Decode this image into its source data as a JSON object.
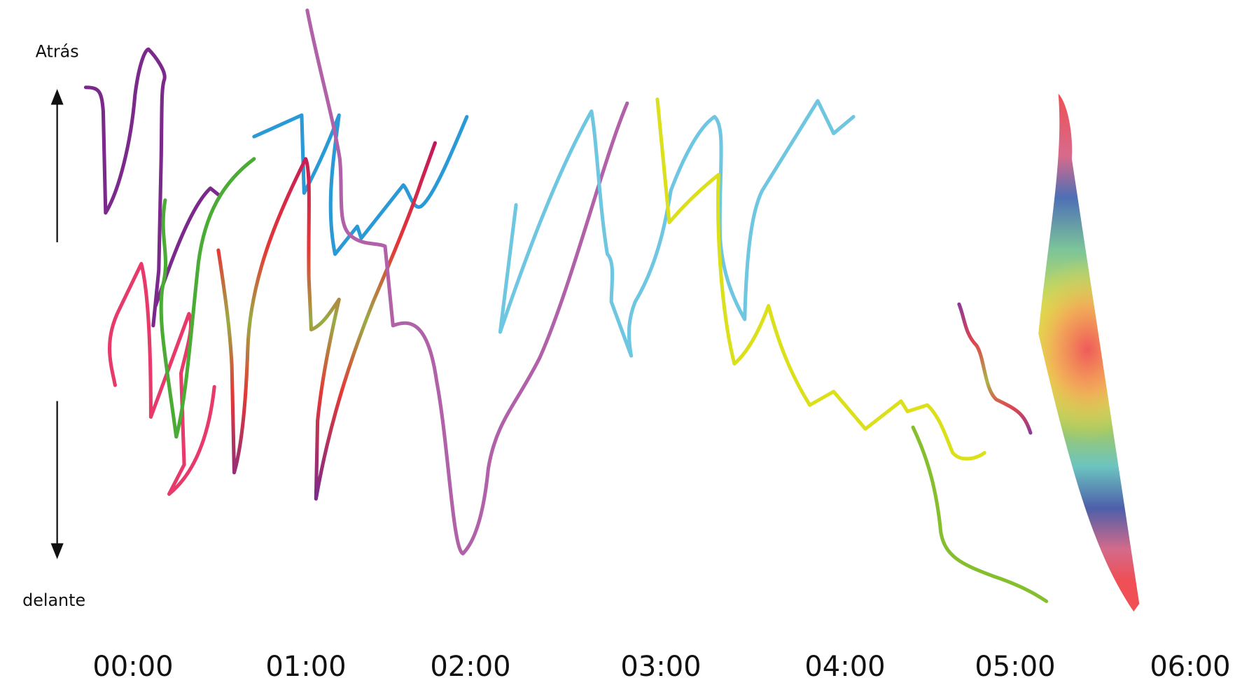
{
  "labels": {
    "top": "Atrás",
    "bottom": "delante"
  },
  "time_labels": [
    "00:00",
    "01:00",
    "02:00",
    "03:00",
    "04:00",
    "05:00",
    "06:00"
  ]
}
